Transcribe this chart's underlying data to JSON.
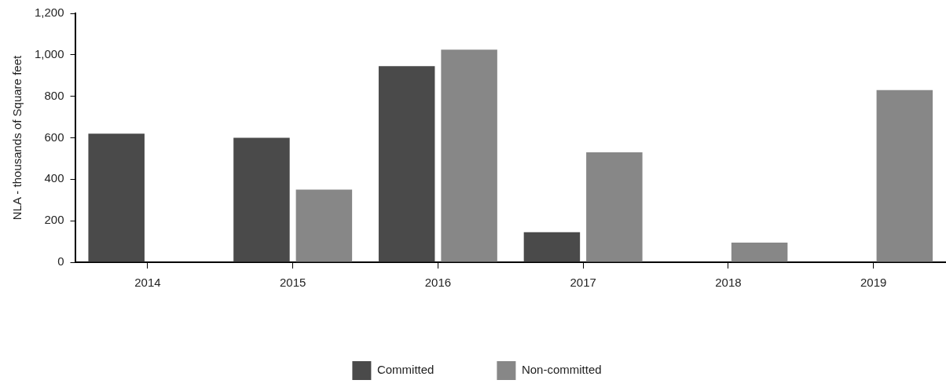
{
  "chart_data": {
    "type": "bar",
    "ylabel": "NLA - thousands of Square feet",
    "categories": [
      "2014",
      "2015",
      "2016",
      "2017",
      "2018",
      "2019"
    ],
    "series": [
      {
        "name": "Committed",
        "color": "#4a4a4a",
        "values": [
          620,
          600,
          945,
          145,
          0,
          0
        ]
      },
      {
        "name": "Non-committed",
        "color": "#878787",
        "values": [
          0,
          350,
          1025,
          530,
          95,
          830
        ]
      }
    ],
    "ylim": [
      0,
      1200
    ],
    "yticks": [
      {
        "value": 0,
        "label": "0"
      },
      {
        "value": 200,
        "label": "200"
      },
      {
        "value": 400,
        "label": "400"
      },
      {
        "value": 600,
        "label": "600"
      },
      {
        "value": 800,
        "label": "800"
      },
      {
        "value": 1000,
        "label": "1,000"
      },
      {
        "value": 1200,
        "label": "1,200"
      }
    ],
    "grid": false,
    "legend": "bottom"
  }
}
